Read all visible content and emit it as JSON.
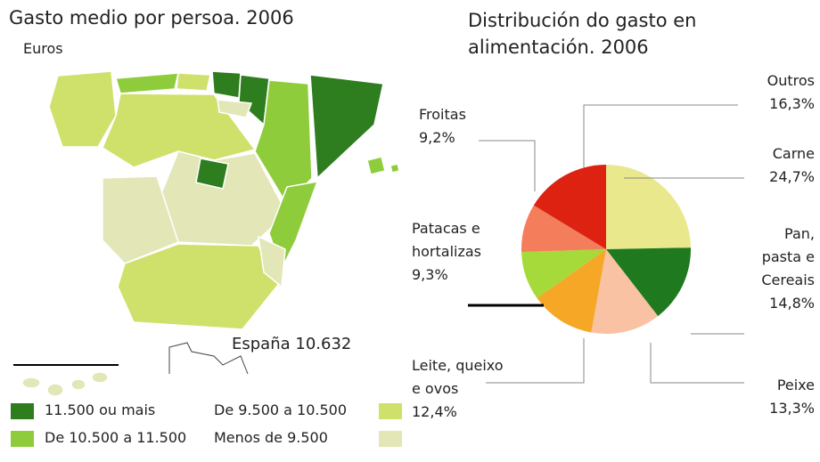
{
  "map": {
    "title": "Gasto medio por persoa. 2006",
    "subtitle": "Euros",
    "note": "España 10.632",
    "legend": [
      {
        "label": "11.500 ou mais",
        "color": "#2e7d1e"
      },
      {
        "label": "De 10.500 a 11.500",
        "color": "#8fcc3c"
      },
      {
        "label": "De 9.500 a 10.500",
        "color": "#cfe16b"
      },
      {
        "label": "Menos de 9.500",
        "color": "#e3e6b6"
      }
    ]
  },
  "chart_data": {
    "type": "pie",
    "title": "Distribución do gasto en\nalimentación. 2006",
    "categories": [
      "Carne",
      "Pan,\npasta e\nCereais",
      "Peixe",
      "Leite, queixo\ne ovos",
      "Patacas e\nhortalizas",
      "Froitas",
      "Outros"
    ],
    "values": [
      24.7,
      14.8,
      13.3,
      12.4,
      9.3,
      9.2,
      16.3
    ],
    "value_labels": [
      "24,7%",
      "14,8%",
      "13,3%",
      "12,4%",
      "9,3%",
      "9,2%",
      "16,3%"
    ],
    "colors": [
      "#e9e88d",
      "#1f7a1f",
      "#f9c2a2",
      "#f6a726",
      "#a6d93a",
      "#f47d5b",
      "#dd2212"
    ]
  }
}
